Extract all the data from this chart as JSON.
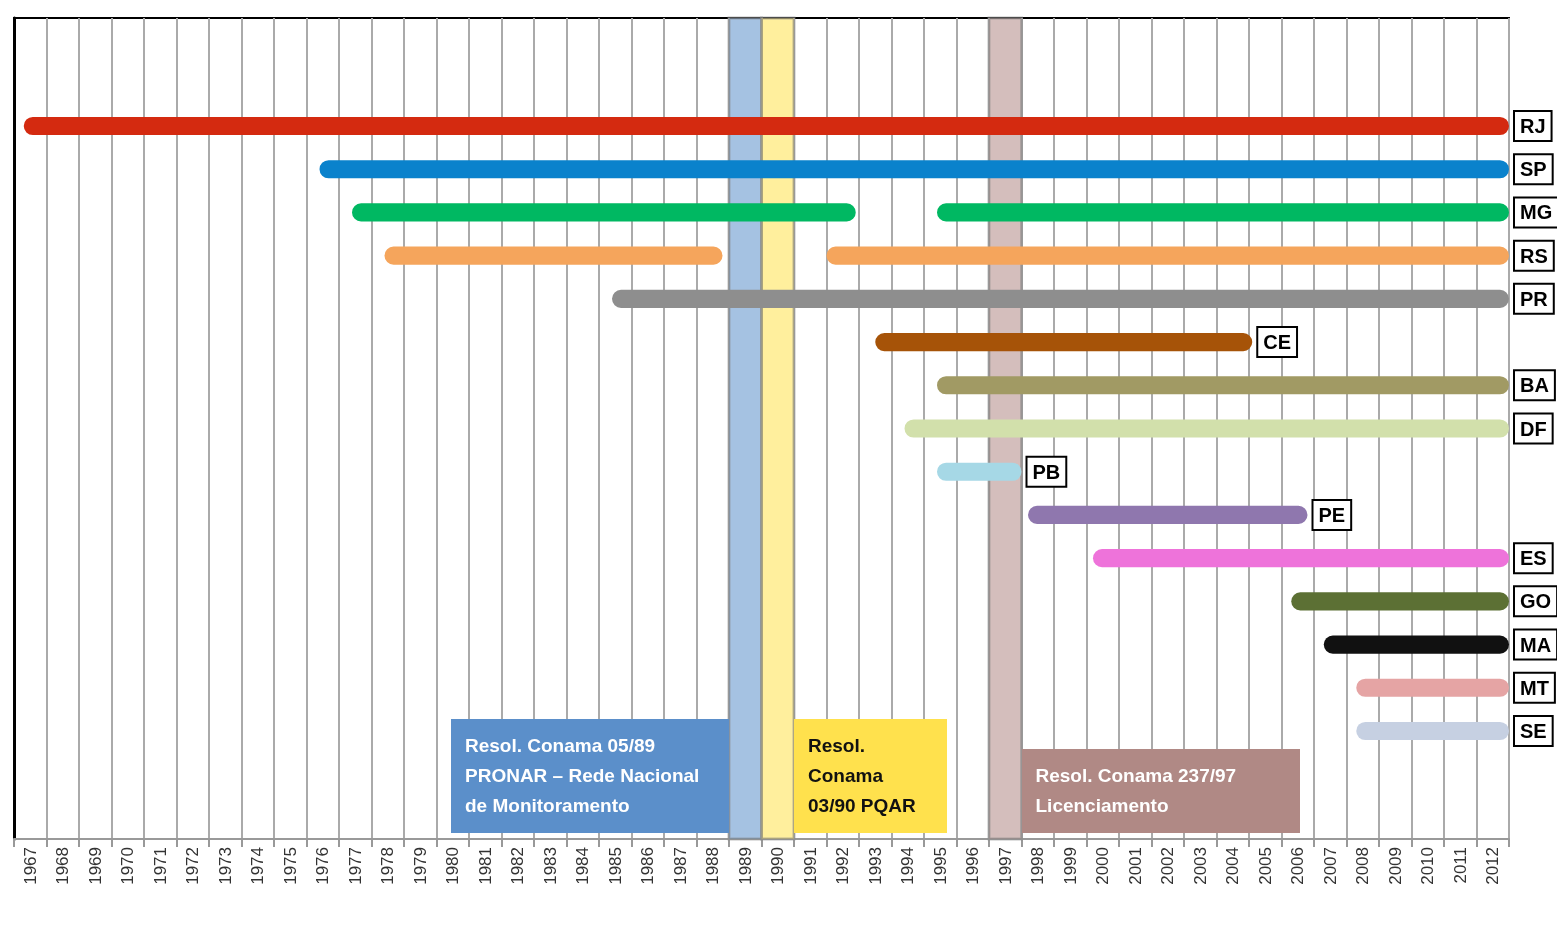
{
  "chart_data": {
    "type": "bar",
    "orientation": "horizontal",
    "categories": [
      "RJ",
      "SP",
      "MG",
      "RS",
      "PR",
      "CE",
      "BA",
      "DF",
      "PB",
      "PE",
      "ES",
      "GO",
      "MA",
      "MT",
      "SE"
    ],
    "series": [
      {
        "values": [
          45.7,
          36.6,
          15.5,
          10.4,
          27.6,
          11.6,
          17.6,
          18.6,
          2.6,
          8.6,
          12.8,
          6.7,
          5.7,
          4.7,
          4.7
        ],
        "base": [
          1966.8,
          1975.9,
          1976.9,
          1977.9,
          1984.9,
          1993.0,
          1994.9,
          1993.9,
          1994.9,
          1997.7,
          1999.7,
          2005.8,
          2006.8,
          2007.8,
          2007.8
        ],
        "colors": [
          "#d42a10",
          "#0a82cc",
          "#00b862",
          "#f5a55c",
          "#8e8e8e",
          "#a65308",
          "#a19a64",
          "#d2e0ab",
          "#a6d8e6",
          "#8f77ae",
          "#ee73da",
          "#5c7034",
          "#111111",
          "#e5a4a4",
          "#c6d0e2"
        ]
      },
      {
        "values": [
          null,
          null,
          17.6,
          21.0,
          null,
          null,
          null,
          null,
          null,
          null,
          null,
          null,
          null,
          null,
          null
        ],
        "base": [
          null,
          null,
          1994.9,
          1991.5,
          null,
          null,
          null,
          null,
          null,
          null,
          null,
          null,
          null,
          null,
          null
        ],
        "colors": [
          null,
          null,
          "#00b862",
          "#f5a55c",
          null,
          null,
          null,
          null,
          null,
          null,
          null,
          null,
          null,
          null,
          null
        ]
      }
    ],
    "xlim": [
      1966.5,
      2012.5
    ],
    "xticks": [
      1967,
      1968,
      1969,
      1970,
      1971,
      1972,
      1973,
      1974,
      1975,
      1976,
      1977,
      1978,
      1979,
      1980,
      1981,
      1982,
      1983,
      1984,
      1985,
      1986,
      1987,
      1988,
      1989,
      1990,
      1991,
      1992,
      1993,
      1994,
      1995,
      1996,
      1997,
      1998,
      1999,
      2000,
      2001,
      2002,
      2003,
      2004,
      2005,
      2006,
      2007,
      2008,
      2009,
      2010,
      2011,
      2012
    ],
    "bands": [
      {
        "axis": "x",
        "from": 1988.5,
        "to": 1989.5,
        "label": "Resol. Conama 05/89 PRONAR – Rede Nacional de Monitoramento",
        "color": "#5b8fca"
      },
      {
        "axis": "x",
        "from": 1989.5,
        "to": 1990.5,
        "label": "Resol. Conama 03/90 PQAR",
        "color": "#ffe14d"
      },
      {
        "axis": "x",
        "from": 1996.5,
        "to": 1997.5,
        "label": "Resol. Conama 237/97 Licenciamento",
        "color": "#b08985"
      }
    ],
    "grid": "x",
    "tick_labels": "x"
  }
}
